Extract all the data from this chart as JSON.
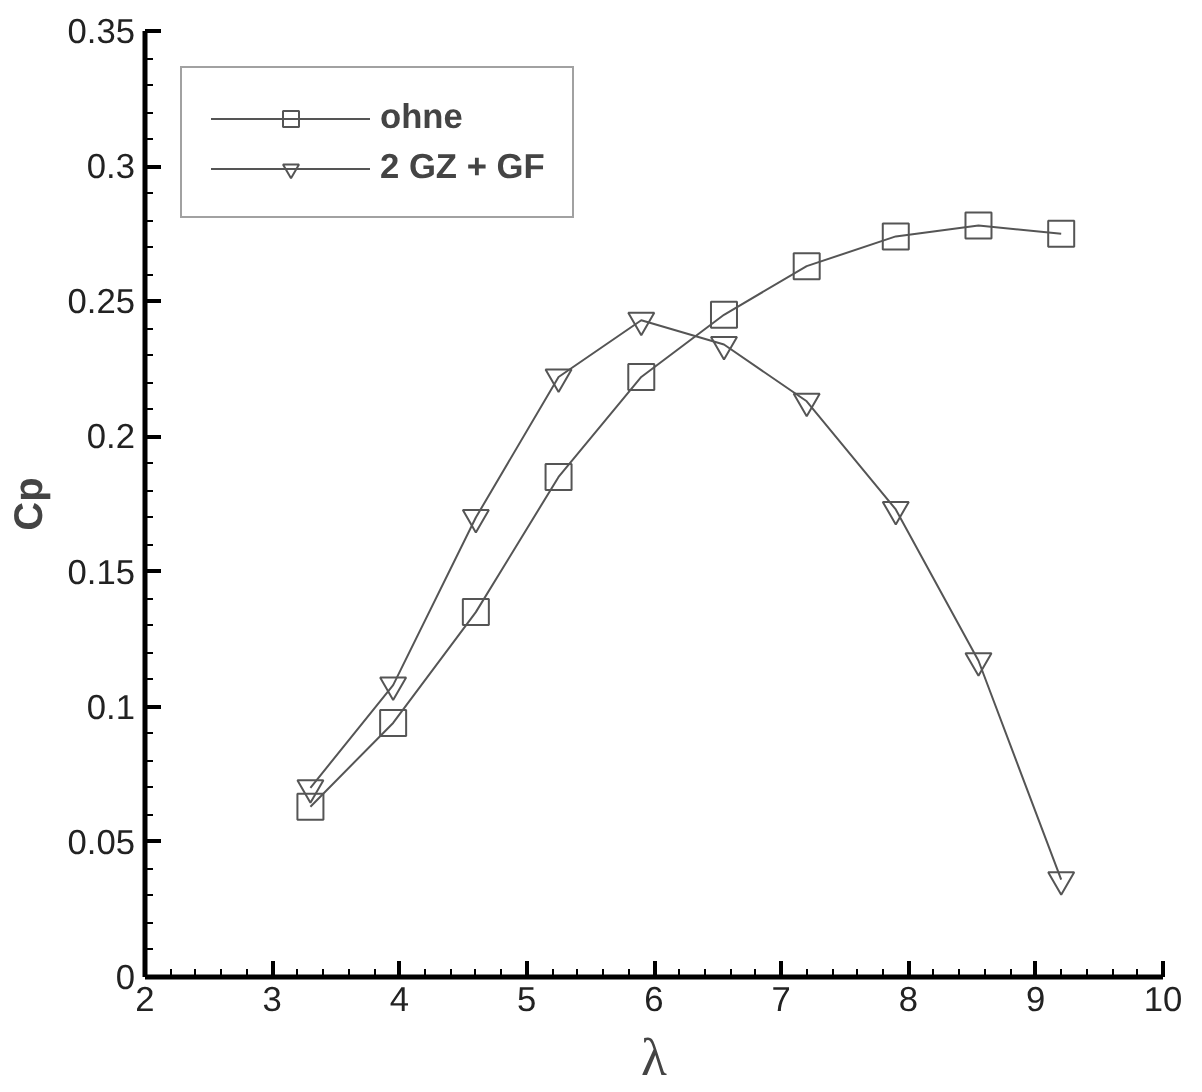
{
  "chart_data": {
    "type": "line",
    "xlabel": "λ",
    "ylabel": "Cp",
    "x": [
      3.3,
      3.95,
      4.6,
      5.25,
      5.9,
      6.55,
      7.2,
      7.9,
      8.55,
      9.2
    ],
    "series": [
      {
        "name": "ohne",
        "color": "#555555",
        "marker": "square",
        "values": [
          0.063,
          0.094,
          0.135,
          0.185,
          0.222,
          0.245,
          0.263,
          0.274,
          0.278,
          0.275
        ]
      },
      {
        "name": "2 GZ + GF",
        "color": "#555555",
        "marker": "triangle",
        "values": [
          0.07,
          0.108,
          0.17,
          0.222,
          0.243,
          0.234,
          0.213,
          0.173,
          0.117,
          0.036
        ]
      }
    ],
    "xlim": [
      2,
      10
    ],
    "xticks": [
      2,
      3,
      4,
      5,
      6,
      7,
      8,
      9,
      10
    ],
    "ylim": [
      0,
      0.35
    ],
    "yticks": [
      0,
      0.05,
      0.1,
      0.15,
      0.2,
      0.25,
      0.3,
      0.35
    ],
    "grid": false,
    "legend": "top left",
    "line_style": "solid"
  }
}
